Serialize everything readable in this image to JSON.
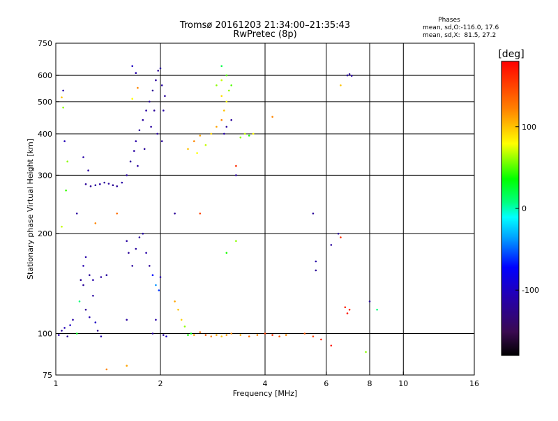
{
  "chart_data": {
    "type": "scatter",
    "title": "Tromsø 20161203 21:34:00–21:35:43",
    "subtitle": "RwPretec (8p)",
    "xlabel": "Frequency [MHz]",
    "ylabel": "Stationary phase Virtual Height [km]",
    "x_scale": "log",
    "y_scale": "log",
    "xlim": [
      1,
      16
    ],
    "ylim": [
      75,
      750
    ],
    "x_tick_labels": [
      "1",
      "2",
      "4",
      "6",
      "8",
      "10",
      "16"
    ],
    "x_ticks": [
      1,
      2,
      4,
      6,
      8,
      10,
      16
    ],
    "x_gridlines": [
      2,
      4,
      6,
      8,
      10
    ],
    "y_tick_labels": [
      "75",
      "100",
      "200",
      "300",
      "400",
      "500",
      "600",
      "750"
    ],
    "y_ticks": [
      75,
      100,
      200,
      300,
      400,
      500,
      600,
      750
    ],
    "y_gridlines": [
      100,
      200,
      300,
      400,
      500,
      600
    ],
    "grid": true,
    "phase_stats": {
      "heading": "Phases",
      "line_o": "mean, sd,O:-116.0, 17.6",
      "line_x": "mean, sd,X:  81.5, 27.2"
    },
    "colorbar": {
      "label": "[deg]",
      "range": [
        -180,
        180
      ],
      "tick_labels": [
        "100",
        "0",
        "-100"
      ],
      "tick_values": [
        100,
        0,
        -100
      ]
    },
    "series": [
      {
        "color_by": "phase",
        "points": [
          [
            1.02,
            99,
            -110
          ],
          [
            1.04,
            102,
            -115
          ],
          [
            1.06,
            104,
            -105
          ],
          [
            1.08,
            98,
            -120
          ],
          [
            1.1,
            106,
            -100
          ],
          [
            1.12,
            110,
            -112
          ],
          [
            1.15,
            100,
            30
          ],
          [
            1.17,
            125,
            10
          ],
          [
            1.2,
            140,
            -118
          ],
          [
            1.22,
            118,
            -120
          ],
          [
            1.25,
            112,
            -108
          ],
          [
            1.28,
            130,
            -115
          ],
          [
            1.3,
            108,
            -100
          ],
          [
            1.32,
            102,
            -122
          ],
          [
            1.35,
            98,
            -110
          ],
          [
            1.05,
            540,
            -110
          ],
          [
            1.06,
            380,
            -105
          ],
          [
            1.08,
            330,
            60
          ],
          [
            1.07,
            270,
            45
          ],
          [
            1.04,
            210,
            70
          ],
          [
            1.05,
            480,
            60
          ],
          [
            1.04,
            515,
            100
          ],
          [
            1.15,
            230,
            -115
          ],
          [
            1.18,
            145,
            -120
          ],
          [
            1.2,
            160,
            -108
          ],
          [
            1.22,
            170,
            -112
          ],
          [
            1.25,
            150,
            -118
          ],
          [
            1.28,
            145,
            -110
          ],
          [
            1.35,
            148,
            -114
          ],
          [
            1.4,
            150,
            -116
          ],
          [
            1.2,
            340,
            -112
          ],
          [
            1.24,
            310,
            -115
          ],
          [
            1.22,
            282,
            -118
          ],
          [
            1.26,
            278,
            -120
          ],
          [
            1.3,
            280,
            -116
          ],
          [
            1.34,
            282,
            -114
          ],
          [
            1.38,
            285,
            -118
          ],
          [
            1.42,
            283,
            -116
          ],
          [
            1.46,
            280,
            -120
          ],
          [
            1.5,
            278,
            -118
          ],
          [
            1.55,
            285,
            -112
          ],
          [
            1.6,
            300,
            -116
          ],
          [
            1.64,
            330,
            -118
          ],
          [
            1.68,
            355,
            -114
          ],
          [
            1.7,
            380,
            -112
          ],
          [
            1.74,
            410,
            -118
          ],
          [
            1.78,
            440,
            -116
          ],
          [
            1.82,
            470,
            -114
          ],
          [
            1.86,
            500,
            -118
          ],
          [
            1.9,
            540,
            -120
          ],
          [
            1.94,
            580,
            -116
          ],
          [
            1.97,
            620,
            -118
          ],
          [
            2.0,
            630,
            -114
          ],
          [
            2.02,
            560,
            -112
          ],
          [
            1.88,
            420,
            -116
          ],
          [
            1.8,
            360,
            -118
          ],
          [
            1.72,
            320,
            -114
          ],
          [
            1.92,
            470,
            -118
          ],
          [
            1.96,
            400,
            -116
          ],
          [
            2.04,
            470,
            -112
          ],
          [
            2.06,
            520,
            -118
          ],
          [
            2.02,
            380,
            -116
          ],
          [
            1.66,
            640,
            -100
          ],
          [
            1.7,
            610,
            -110
          ],
          [
            1.66,
            510,
            80
          ],
          [
            1.72,
            550,
            120
          ],
          [
            1.7,
            180,
            -116
          ],
          [
            1.74,
            195,
            -118
          ],
          [
            1.78,
            200,
            -114
          ],
          [
            1.82,
            175,
            -112
          ],
          [
            1.86,
            160,
            -118
          ],
          [
            1.9,
            150,
            -70
          ],
          [
            1.94,
            140,
            -40
          ],
          [
            1.98,
            135,
            -60
          ],
          [
            1.66,
            160,
            -116
          ],
          [
            1.62,
            175,
            -118
          ],
          [
            1.6,
            190,
            -114
          ],
          [
            2.0,
            148,
            -110
          ],
          [
            1.9,
            100,
            -116
          ],
          [
            1.94,
            110,
            -112
          ],
          [
            2.04,
            99,
            -118
          ],
          [
            2.08,
            98,
            -100
          ],
          [
            2.2,
            125,
            110
          ],
          [
            2.25,
            118,
            100
          ],
          [
            2.3,
            110,
            95
          ],
          [
            2.35,
            105,
            60
          ],
          [
            2.4,
            99,
            40
          ],
          [
            2.45,
            100,
            30
          ],
          [
            2.5,
            99,
            110
          ],
          [
            2.6,
            101,
            130
          ],
          [
            2.7,
            99,
            140
          ],
          [
            2.8,
            98,
            120
          ],
          [
            2.9,
            99,
            110
          ],
          [
            3.0,
            98,
            100
          ],
          [
            3.1,
            99,
            115
          ],
          [
            3.2,
            100,
            120
          ],
          [
            3.4,
            99,
            110
          ],
          [
            3.6,
            98,
            130
          ],
          [
            3.8,
            99,
            120
          ],
          [
            4.0,
            100,
            150
          ],
          [
            4.2,
            99,
            160
          ],
          [
            4.4,
            98,
            140
          ],
          [
            4.6,
            99,
            120
          ],
          [
            5.2,
            100,
            140
          ],
          [
            5.5,
            98,
            150
          ],
          [
            5.8,
            96,
            165
          ],
          [
            6.2,
            92,
            170
          ],
          [
            7.0,
            118,
            165
          ],
          [
            7.8,
            88,
            60
          ],
          [
            8.4,
            118,
            10
          ],
          [
            2.4,
            360,
            100
          ],
          [
            2.5,
            380,
            120
          ],
          [
            2.55,
            350,
            80
          ],
          [
            2.6,
            395,
            110
          ],
          [
            2.7,
            370,
            70
          ],
          [
            2.8,
            400,
            95
          ],
          [
            2.9,
            420,
            110
          ],
          [
            3.0,
            440,
            120
          ],
          [
            3.05,
            470,
            100
          ],
          [
            3.1,
            500,
            80
          ],
          [
            3.15,
            540,
            60
          ],
          [
            3.2,
            560,
            50
          ],
          [
            3.0,
            520,
            90
          ],
          [
            3.1,
            420,
            -116
          ],
          [
            3.2,
            440,
            -118
          ],
          [
            3.05,
            400,
            -112
          ],
          [
            3.4,
            390,
            60
          ],
          [
            3.5,
            400,
            70
          ],
          [
            3.6,
            395,
            40
          ],
          [
            3.7,
            400,
            80
          ],
          [
            3.0,
            580,
            70
          ],
          [
            3.1,
            600,
            50
          ],
          [
            2.9,
            560,
            60
          ],
          [
            2.2,
            230,
            -118
          ],
          [
            2.6,
            230,
            150
          ],
          [
            3.3,
            190,
            60
          ],
          [
            3.1,
            175,
            40
          ],
          [
            3.3,
            320,
            160
          ],
          [
            3.3,
            300,
            -116
          ],
          [
            5.5,
            230,
            -118
          ],
          [
            6.5,
            200,
            -118
          ],
          [
            6.6,
            195,
            160
          ],
          [
            6.2,
            185,
            -116
          ],
          [
            5.6,
            165,
            -112
          ],
          [
            5.6,
            155,
            -118
          ],
          [
            6.8,
            120,
            165
          ],
          [
            6.9,
            115,
            170
          ],
          [
            8.0,
            125,
            -116
          ],
          [
            6.9,
            600,
            -118
          ],
          [
            7.0,
            605,
            -116
          ],
          [
            7.1,
            598,
            -114
          ],
          [
            6.6,
            560,
            100
          ],
          [
            3.0,
            640,
            20
          ],
          [
            4.2,
            450,
            120
          ],
          [
            1.6,
            110,
            -115
          ],
          [
            1.4,
            78,
            120
          ],
          [
            1.6,
            80,
            110
          ],
          [
            1.3,
            215,
            120
          ],
          [
            1.5,
            230,
            130
          ]
        ]
      }
    ]
  }
}
